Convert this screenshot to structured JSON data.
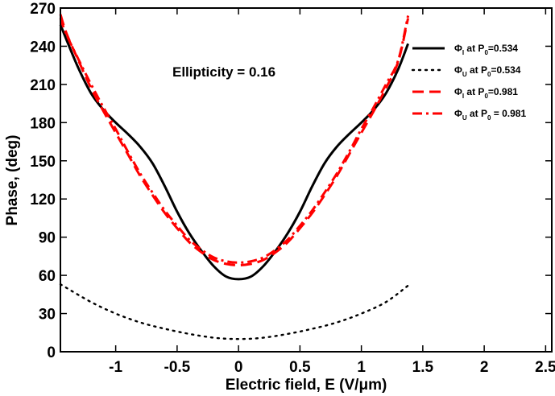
{
  "chart_data": {
    "type": "line",
    "title": "",
    "xlabel": "Electric field, E (V/μm)",
    "ylabel": "Phase, (deg)",
    "xlim": [
      -1.45,
      2.55
    ],
    "ylim": [
      0,
      270
    ],
    "xticks": [
      -1,
      -0.5,
      0,
      0.5,
      1,
      1.5,
      2,
      2.5
    ],
    "xtick_labels": [
      "-1",
      "-0.5",
      "0",
      "0.5",
      "1",
      "1.5",
      "2",
      "2.5"
    ],
    "yticks": [
      0,
      30,
      60,
      90,
      120,
      150,
      180,
      210,
      240,
      270
    ],
    "ytick_labels": [
      "0",
      "30",
      "60",
      "90",
      "120",
      "150",
      "180",
      "210",
      "240",
      "270"
    ],
    "grid": false,
    "legend_position": "top-right",
    "annotation": "Ellipticity = 0.16",
    "series": [
      {
        "name": "ΦI at P0=0.534",
        "legend": {
          "sym": "Φ",
          "sub1": "I",
          "mid": " at P",
          "sub2": "0",
          "tail": "=0.534"
        },
        "color": "#000000",
        "style": "solid",
        "x": [
          -1.45,
          -1.4,
          -1.3,
          -1.2,
          -1.1,
          -1.0,
          -0.9,
          -0.8,
          -0.7,
          -0.6,
          -0.5,
          -0.4,
          -0.3,
          -0.2,
          -0.1,
          0.0,
          0.1,
          0.2,
          0.3,
          0.4,
          0.5,
          0.6,
          0.7,
          0.8,
          0.9,
          1.0,
          1.1,
          1.2,
          1.3,
          1.38
        ],
        "y": [
          257,
          245,
          222,
          203,
          190,
          180,
          171,
          161,
          148,
          130,
          110,
          93,
          79,
          67,
          59,
          57,
          59,
          67,
          79,
          93,
          110,
          130,
          148,
          161,
          171,
          180,
          190,
          203,
          222,
          242
        ]
      },
      {
        "name": "ΦU at P0=0.534",
        "legend": {
          "sym": "Φ",
          "sub1": "U",
          "mid": " at P",
          "sub2": "0",
          "tail": "=0.534"
        },
        "color": "#000000",
        "style": "dotted",
        "x": [
          -1.45,
          -1.2,
          -1.0,
          -0.8,
          -0.6,
          -0.4,
          -0.2,
          0.0,
          0.2,
          0.4,
          0.6,
          0.8,
          1.0,
          1.2,
          1.38
        ],
        "y": [
          53,
          39,
          30,
          23,
          18,
          14,
          11,
          10,
          11,
          14,
          18,
          23,
          30,
          39,
          52
        ]
      },
      {
        "name": "ΦI at P0=0.981",
        "legend": {
          "sym": "Φ",
          "sub1": "I",
          "mid": " at P",
          "sub2": "0",
          "tail": "=0.981"
        },
        "color": "#ff0000",
        "style": "dashed",
        "x": [
          -1.45,
          -1.4,
          -1.3,
          -1.2,
          -1.1,
          -1.0,
          -0.9,
          -0.8,
          -0.7,
          -0.6,
          -0.5,
          -0.4,
          -0.3,
          -0.2,
          -0.1,
          0.0,
          0.1,
          0.2,
          0.3,
          0.4,
          0.5,
          0.6,
          0.7,
          0.8,
          0.9,
          1.0,
          1.1,
          1.2,
          1.3,
          1.38
        ],
        "y": [
          265,
          250,
          228,
          207,
          189,
          172,
          155,
          138,
          123,
          109,
          97,
          86,
          78,
          72,
          69,
          68,
          69,
          72,
          78,
          86,
          97,
          109,
          123,
          138,
          155,
          172,
          189,
          207,
          228,
          262
        ]
      },
      {
        "name": "ΦU at P0 = 0.981",
        "legend": {
          "sym": "Φ",
          "sub1": "U",
          "mid": " at P",
          "sub2": "0",
          "tail": " = 0.981"
        },
        "color": "#ff0000",
        "style": "dashdot",
        "x": [
          -1.45,
          -1.4,
          -1.3,
          -1.2,
          -1.1,
          -1.0,
          -0.9,
          -0.8,
          -0.7,
          -0.6,
          -0.5,
          -0.4,
          -0.3,
          -0.2,
          -0.1,
          0.0,
          0.1,
          0.2,
          0.3,
          0.4,
          0.5,
          0.6,
          0.7,
          0.8,
          0.9,
          1.0,
          1.1,
          1.2,
          1.3,
          1.38
        ],
        "y": [
          262,
          249,
          229,
          210,
          192,
          175,
          157,
          140,
          125,
          111,
          99,
          88,
          80,
          74,
          71,
          70,
          71,
          74,
          80,
          88,
          99,
          111,
          125,
          140,
          157,
          175,
          192,
          210,
          229,
          264
        ]
      }
    ]
  }
}
